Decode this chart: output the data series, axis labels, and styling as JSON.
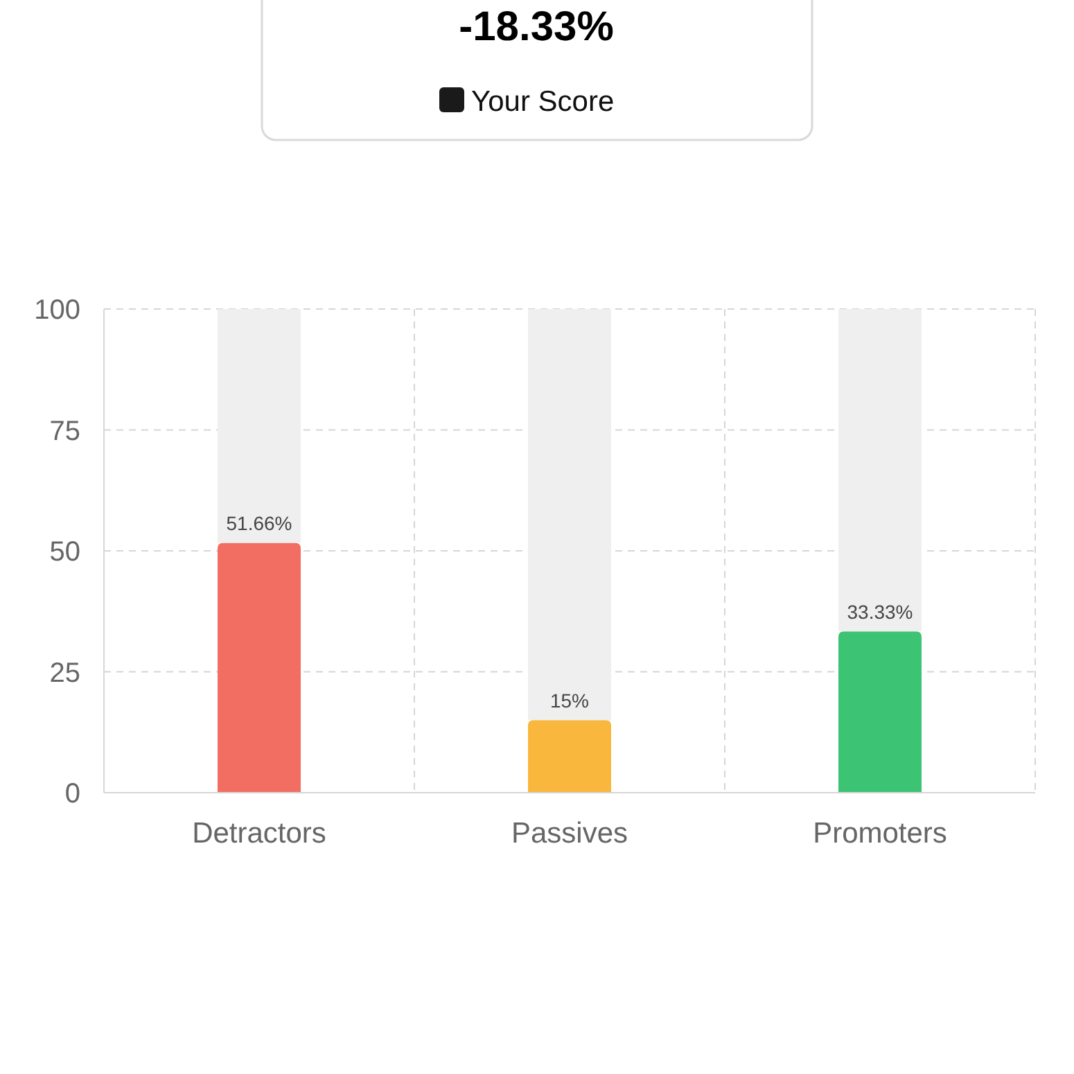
{
  "chart_data": [
    {
      "type": "other",
      "title": "-18.33%",
      "annotations": [
        "Your Score"
      ],
      "color": "#1a1a1a"
    },
    {
      "type": "bar",
      "categories": [
        "Detractors",
        "Passives",
        "Promoters"
      ],
      "stacked": true,
      "ylim": [
        0,
        100
      ],
      "yticks": [
        0,
        25,
        50,
        75,
        100
      ],
      "grid": true,
      "series": [
        {
          "colors": [
            "#f26d62",
            "#f9b73e",
            "#3cc374"
          ],
          "values": [
            51.66,
            15,
            33.33
          ],
          "value_labels": [
            "51.66%",
            "15%",
            "33.33%"
          ]
        },
        {
          "color": "#efefef",
          "values": [
            48.34,
            85,
            66.67
          ]
        }
      ]
    }
  ]
}
